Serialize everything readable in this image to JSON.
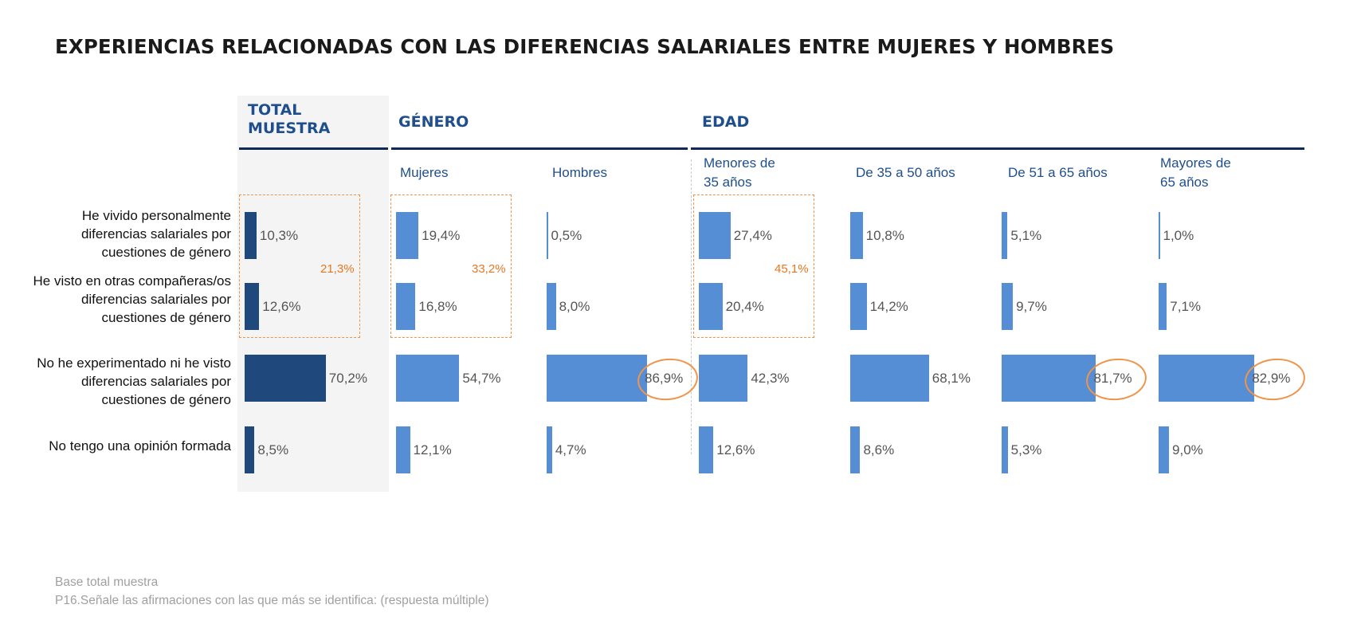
{
  "title": "EXPERIENCIAS RELACIONADAS CON LAS DIFERENCIAS SALARIALES ENTRE MUJERES Y HOMBRES",
  "groups": {
    "total": "TOTAL\nMUESTRA",
    "genero": "GÉNERO",
    "edad": "EDAD"
  },
  "columns": [
    "Total muestra",
    "Mujeres",
    "Hombres",
    "Menores de\n35 años",
    "De 35 a 50 años",
    "De 51 a 65 años",
    "Mayores de\n 65 años"
  ],
  "rows": [
    "He vivido personalmente diferencias salariales por cuestiones de género",
    "He visto en otras compañeras/os diferencias salariales por cuestiones de género",
    "No he experimentado ni he visto diferencias salariales por cuestiones de género",
    "No tengo una opinión formada"
  ],
  "chart_data": {
    "type": "bar",
    "orientation": "horizontal",
    "title": "EXPERIENCIAS RELACIONADAS CON LAS DIFERENCIAS SALARIALES ENTRE MUJERES Y HOMBRES",
    "categories": [
      "He vivido personalmente diferencias salariales por cuestiones de género",
      "He visto en otras compañeras/os diferencias salariales por cuestiones de género",
      "No he experimentado ni he visto diferencias salariales por cuestiones de género",
      "No tengo una opinión formada"
    ],
    "unit": "%",
    "xlim": [
      0,
      100
    ],
    "series": [
      {
        "name": "TOTAL MUESTRA",
        "values": [
          10.3,
          12.6,
          70.2,
          8.5
        ],
        "labels": [
          "10,3%",
          "12,6%",
          "70,2%",
          "8,5%"
        ],
        "color": "#1f497d"
      },
      {
        "name": "Mujeres",
        "values": [
          19.4,
          16.8,
          54.7,
          12.1
        ],
        "labels": [
          "19,4%",
          "16,8%",
          "54,7%",
          "12,1%"
        ],
        "color": "#558ed5"
      },
      {
        "name": "Hombres",
        "values": [
          0.5,
          8.0,
          86.9,
          4.7
        ],
        "labels": [
          "0,5%",
          "8,0%",
          "86,9%",
          "4,7%"
        ],
        "color": "#558ed5"
      },
      {
        "name": "Menores de 35 años",
        "values": [
          27.4,
          20.4,
          42.3,
          12.6
        ],
        "labels": [
          "27,4%",
          "20,4%",
          "42,3%",
          "12,6%"
        ],
        "color": "#558ed5"
      },
      {
        "name": "De 35 a 50 años",
        "values": [
          10.8,
          14.2,
          68.1,
          8.6
        ],
        "labels": [
          "10,8%",
          "14,2%",
          "68,1%",
          "8,6%"
        ],
        "color": "#558ed5"
      },
      {
        "name": "De 51 a 65 años",
        "values": [
          5.1,
          9.7,
          81.7,
          5.3
        ],
        "labels": [
          "5,1%",
          "9,7%",
          "81,7%",
          "5,3%"
        ],
        "color": "#558ed5"
      },
      {
        "name": "Mayores de 65 años",
        "values": [
          1.0,
          7.1,
          82.9,
          9.0
        ],
        "labels": [
          "1,0%",
          "7,1%",
          "82,9%",
          "9,0%"
        ],
        "color": "#558ed5"
      }
    ],
    "summaries": [
      {
        "series": "TOTAL MUESTRA",
        "value": 21.3,
        "label": "21,3%"
      },
      {
        "series": "Mujeres",
        "value": 33.2,
        "label": "33,2%"
      },
      {
        "series": "Menores de 35 años",
        "value": 45.1,
        "label": "45,1%"
      }
    ],
    "highlighted": [
      {
        "series": "Hombres",
        "category_index": 2,
        "label": "86,9%"
      },
      {
        "series": "De 51 a 65 años",
        "category_index": 2,
        "label": "81,7%"
      },
      {
        "series": "Mayores de 65 años",
        "category_index": 2,
        "label": "82,9%"
      }
    ],
    "highlight_color": "#f0944a"
  },
  "footnotes": [
    "Base total muestra",
    "P16.Señale las afirmaciones con las que más se identifica: (respuesta múltiple)"
  ]
}
